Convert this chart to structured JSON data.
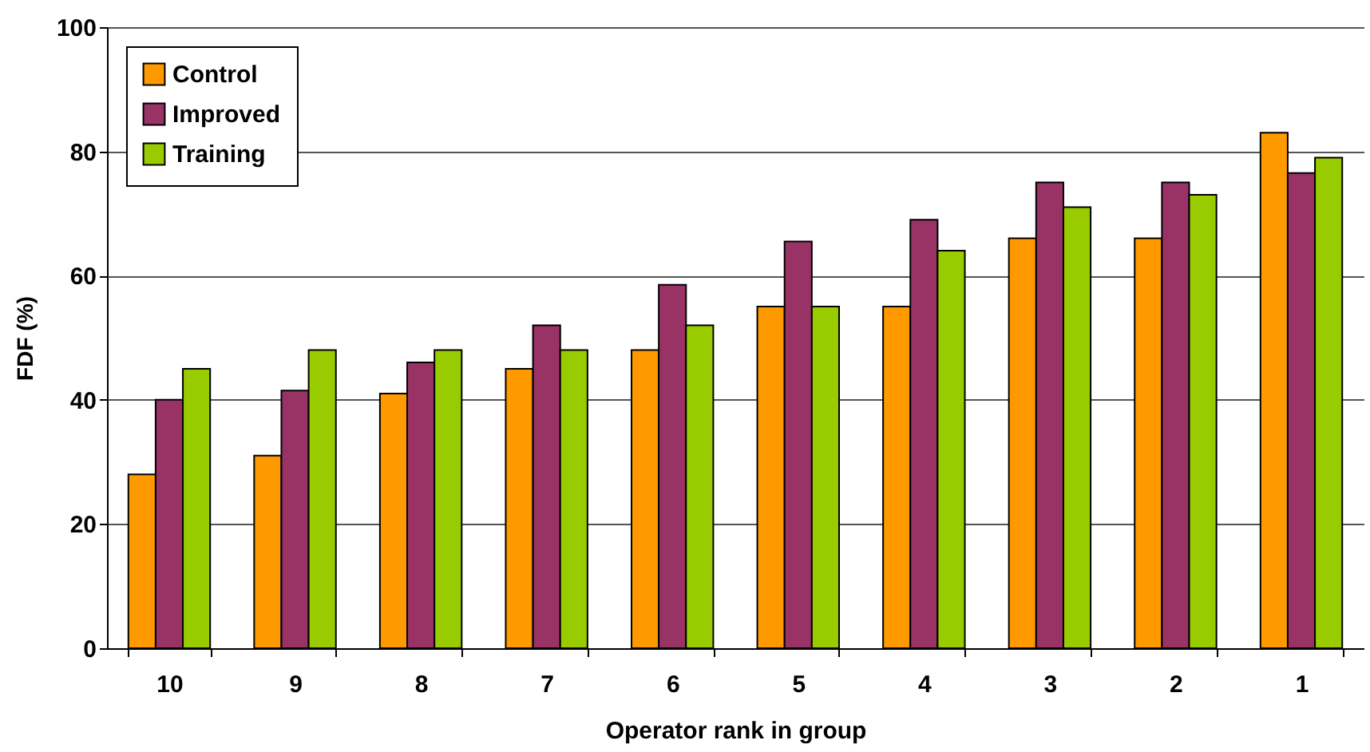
{
  "chart_data": {
    "type": "bar",
    "xlabel": "Operator rank in group",
    "ylabel": "FDF (%)",
    "categories": [
      "10",
      "9",
      "8",
      "7",
      "6",
      "5",
      "4",
      "3",
      "2",
      "1"
    ],
    "series": [
      {
        "name": "Control",
        "color": "#ff9900",
        "values": [
          28,
          31,
          41,
          45,
          48,
          55,
          55,
          66,
          66,
          83
        ]
      },
      {
        "name": "Improved",
        "color": "#993366",
        "values": [
          40,
          41.5,
          46,
          52,
          58.5,
          65.5,
          69,
          75,
          75,
          76.5
        ]
      },
      {
        "name": "Training",
        "color": "#99cc00",
        "values": [
          45,
          48,
          48,
          48,
          52,
          55,
          64,
          71,
          73,
          79
        ]
      }
    ],
    "ylim": [
      0,
      100
    ],
    "yticks": [
      0,
      20,
      40,
      60,
      80,
      100
    ],
    "grid": "y",
    "legend": "top left"
  }
}
